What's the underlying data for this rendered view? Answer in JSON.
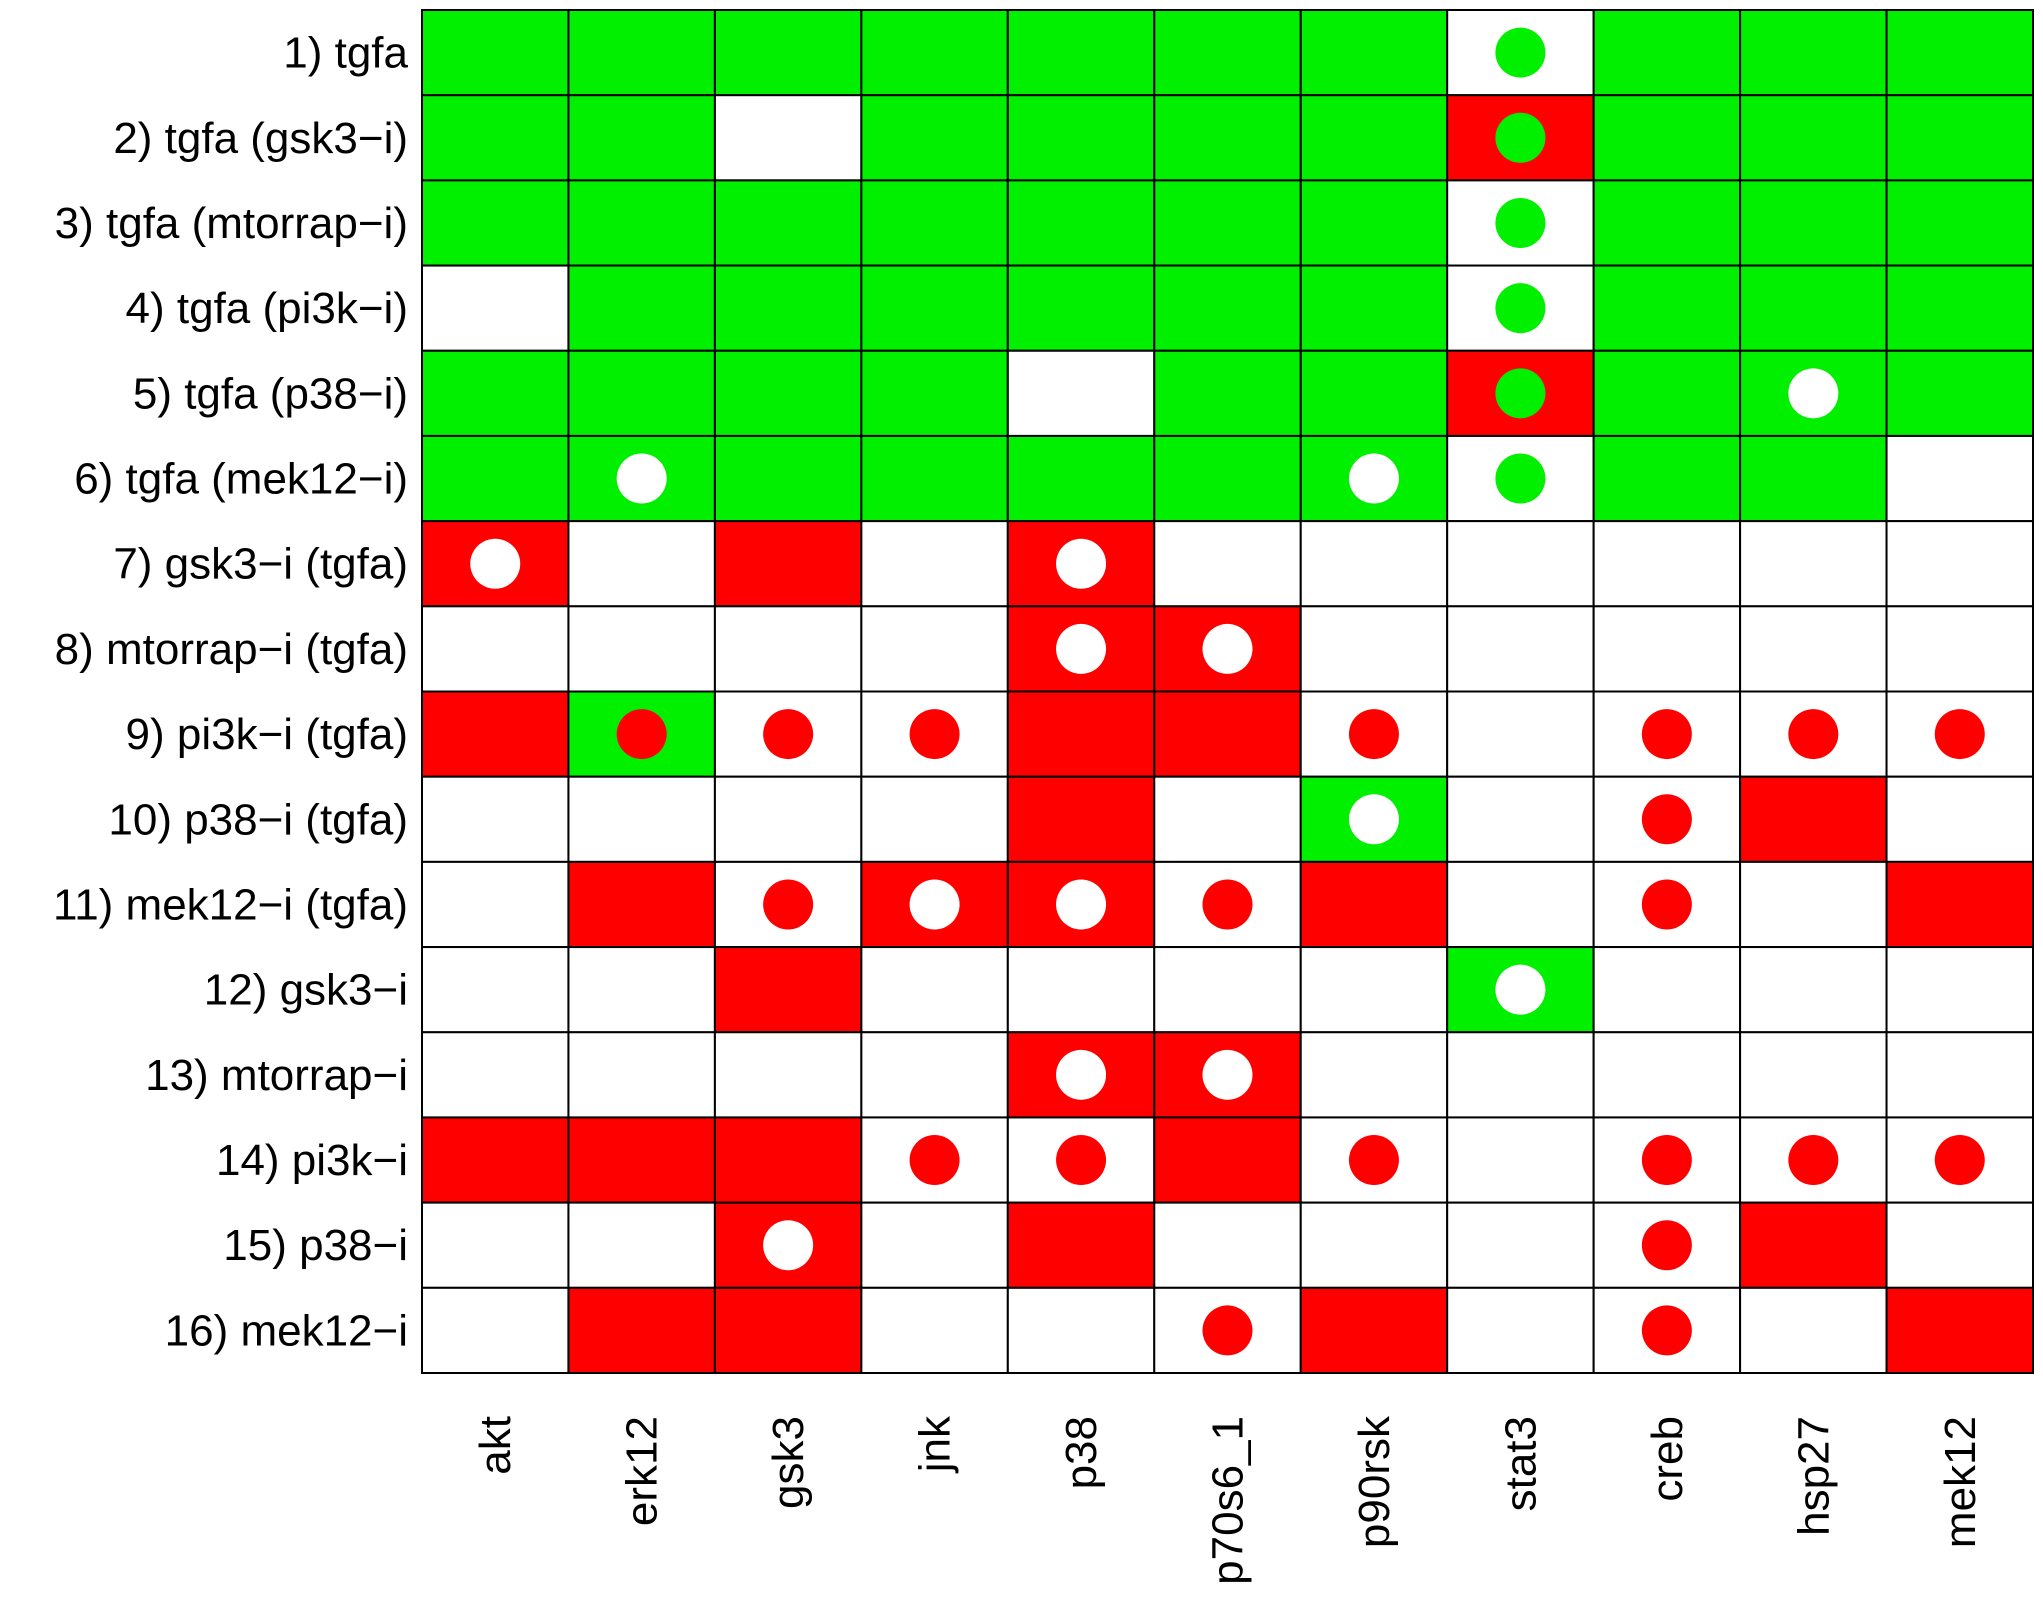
{
  "chart_data": {
    "type": "heatmap",
    "title": "",
    "xlabel": "",
    "ylabel": "",
    "columns": [
      "akt",
      "erk12",
      "gsk3",
      "jnk",
      "p38",
      "p70s6_1",
      "p90rsk",
      "stat3",
      "creb",
      "hsp27",
      "mek12"
    ],
    "rows": [
      "1) tgfa",
      "2) tgfa (gsk3−i)",
      "3) tgfa (mtorrap−i)",
      "4) tgfa (pi3k−i)",
      "5) tgfa (p38−i)",
      "6) tgfa (mek12−i)",
      "7) gsk3−i (tgfa)",
      "8) mtorrap−i (tgfa)",
      "9) pi3k−i (tgfa)",
      "10) p38−i (tgfa)",
      "11) mek12−i (tgfa)",
      "12) gsk3−i",
      "13) mtorrap−i",
      "14) pi3k−i",
      "15) p38−i",
      "16) mek12−i"
    ],
    "cell_codes": {
      "G": "green",
      "R": "red",
      "W": "white"
    },
    "dot_codes": {
      "-": "none",
      "w": "white",
      "g": "green",
      "r": "red"
    },
    "colors": {
      "green": "#00f000",
      "red": "#ff0000",
      "white": "#ffffff",
      "grid": "#000000"
    },
    "cells": [
      [
        "G",
        "G",
        "G",
        "G",
        "G",
        "G",
        "G",
        "W",
        "G",
        "G",
        "G"
      ],
      [
        "G",
        "G",
        "W",
        "G",
        "G",
        "G",
        "G",
        "R",
        "G",
        "G",
        "G"
      ],
      [
        "G",
        "G",
        "G",
        "G",
        "G",
        "G",
        "G",
        "W",
        "G",
        "G",
        "G"
      ],
      [
        "W",
        "G",
        "G",
        "G",
        "G",
        "G",
        "G",
        "W",
        "G",
        "G",
        "G"
      ],
      [
        "G",
        "G",
        "G",
        "G",
        "W",
        "G",
        "G",
        "R",
        "G",
        "G",
        "G"
      ],
      [
        "G",
        "G",
        "G",
        "G",
        "G",
        "G",
        "G",
        "W",
        "G",
        "G",
        "W"
      ],
      [
        "R",
        "W",
        "R",
        "W",
        "R",
        "W",
        "W",
        "W",
        "W",
        "W",
        "W"
      ],
      [
        "W",
        "W",
        "W",
        "W",
        "R",
        "R",
        "W",
        "W",
        "W",
        "W",
        "W"
      ],
      [
        "R",
        "G",
        "W",
        "W",
        "R",
        "R",
        "W",
        "W",
        "W",
        "W",
        "W"
      ],
      [
        "W",
        "W",
        "W",
        "W",
        "R",
        "W",
        "G",
        "W",
        "W",
        "R",
        "W"
      ],
      [
        "W",
        "R",
        "W",
        "R",
        "R",
        "W",
        "R",
        "W",
        "W",
        "W",
        "R"
      ],
      [
        "W",
        "W",
        "R",
        "W",
        "W",
        "W",
        "W",
        "G",
        "W",
        "W",
        "W"
      ],
      [
        "W",
        "W",
        "W",
        "W",
        "R",
        "R",
        "W",
        "W",
        "W",
        "W",
        "W"
      ],
      [
        "R",
        "R",
        "R",
        "W",
        "W",
        "R",
        "W",
        "W",
        "W",
        "W",
        "W"
      ],
      [
        "W",
        "W",
        "R",
        "W",
        "R",
        "W",
        "W",
        "W",
        "W",
        "R",
        "W"
      ],
      [
        "W",
        "R",
        "R",
        "W",
        "W",
        "W",
        "R",
        "W",
        "W",
        "W",
        "R"
      ]
    ],
    "dots": [
      [
        "-",
        "-",
        "-",
        "-",
        "-",
        "-",
        "-",
        "g",
        "-",
        "-",
        "-"
      ],
      [
        "-",
        "-",
        "-",
        "-",
        "-",
        "-",
        "-",
        "g",
        "-",
        "-",
        "-"
      ],
      [
        "-",
        "-",
        "-",
        "-",
        "-",
        "-",
        "-",
        "g",
        "-",
        "-",
        "-"
      ],
      [
        "-",
        "-",
        "-",
        "-",
        "-",
        "-",
        "-",
        "g",
        "-",
        "-",
        "-"
      ],
      [
        "-",
        "-",
        "-",
        "-",
        "-",
        "-",
        "-",
        "g",
        "-",
        "w",
        "-"
      ],
      [
        "-",
        "w",
        "-",
        "-",
        "-",
        "-",
        "w",
        "g",
        "-",
        "-",
        "-"
      ],
      [
        "w",
        "-",
        "-",
        "-",
        "w",
        "-",
        "-",
        "-",
        "-",
        "-",
        "-"
      ],
      [
        "-",
        "-",
        "-",
        "-",
        "w",
        "w",
        "-",
        "-",
        "-",
        "-",
        "-"
      ],
      [
        "-",
        "r",
        "r",
        "r",
        "-",
        "-",
        "r",
        "-",
        "r",
        "r",
        "r"
      ],
      [
        "-",
        "-",
        "-",
        "-",
        "-",
        "-",
        "w",
        "-",
        "r",
        "-",
        "-"
      ],
      [
        "-",
        "-",
        "r",
        "w",
        "w",
        "r",
        "-",
        "-",
        "r",
        "-",
        "-"
      ],
      [
        "-",
        "-",
        "-",
        "-",
        "-",
        "-",
        "-",
        "w",
        "-",
        "-",
        "-"
      ],
      [
        "-",
        "-",
        "-",
        "-",
        "w",
        "w",
        "-",
        "-",
        "-",
        "-",
        "-"
      ],
      [
        "-",
        "-",
        "-",
        "r",
        "r",
        "-",
        "r",
        "-",
        "r",
        "r",
        "r"
      ],
      [
        "-",
        "-",
        "w",
        "-",
        "-",
        "-",
        "-",
        "-",
        "r",
        "-",
        "-"
      ],
      [
        "-",
        "-",
        "-",
        "-",
        "-",
        "r",
        "-",
        "-",
        "r",
        "-",
        "-"
      ]
    ]
  }
}
